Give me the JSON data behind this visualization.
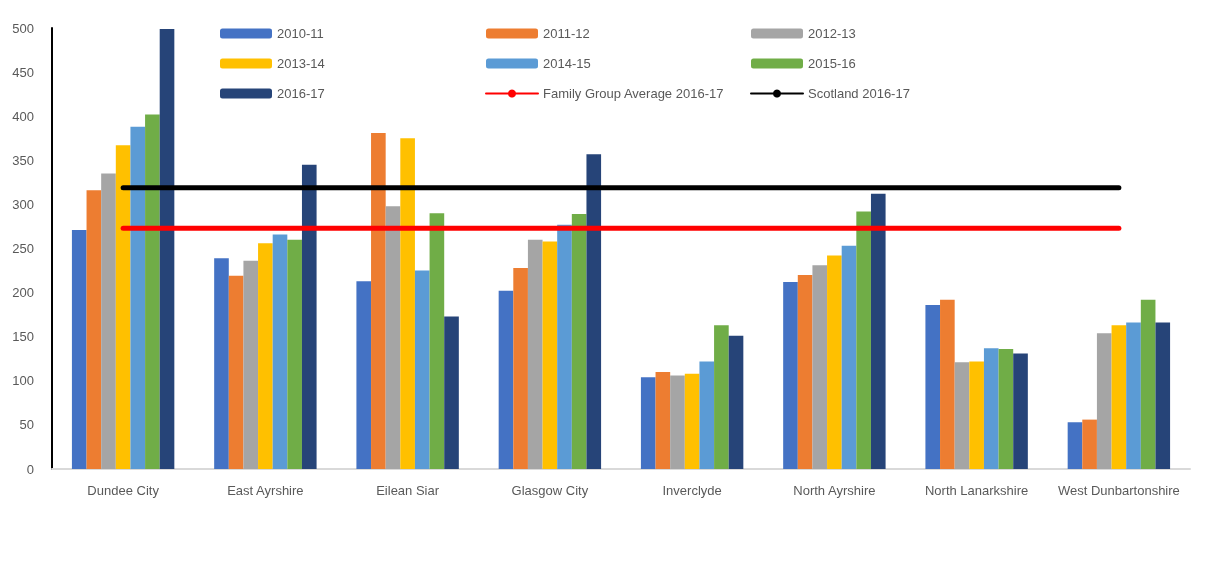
{
  "chart_data": {
    "type": "bar",
    "categories": [
      "Dundee City",
      "East Ayrshire",
      "Eilean Siar",
      "Glasgow City",
      "Inverclyde",
      "North Ayrshire",
      "North Lanarkshire",
      "West Dunbartonshire"
    ],
    "ylim": [
      0,
      500
    ],
    "yticks": [
      0,
      50,
      100,
      150,
      200,
      250,
      300,
      350,
      400,
      450,
      500
    ],
    "grid": false,
    "legend": "top",
    "series": [
      {
        "name": "2010-11",
        "color": "#4472c4",
        "values": [
          271,
          239,
          213,
          202,
          104,
          212,
          186,
          53
        ]
      },
      {
        "name": "2011-12",
        "color": "#ed7d31",
        "values": [
          316,
          219,
          381,
          228,
          110,
          220,
          192,
          56
        ]
      },
      {
        "name": "2012-13",
        "color": "#a5a5a5",
        "values": [
          335,
          236,
          298,
          260,
          106,
          231,
          121,
          154
        ]
      },
      {
        "name": "2013-14",
        "color": "#ffc000",
        "values": [
          367,
          256,
          375,
          258,
          108,
          242,
          122,
          163
        ]
      },
      {
        "name": "2014-15",
        "color": "#5b9bd5",
        "values": [
          388,
          266,
          225,
          277,
          122,
          253,
          137,
          166
        ]
      },
      {
        "name": "2015-16",
        "color": "#70ad47",
        "values": [
          402,
          260,
          290,
          289,
          163,
          292,
          136,
          192
        ]
      },
      {
        "name": "2016-17",
        "color": "#264478",
        "values": [
          499,
          345,
          173,
          357,
          151,
          312,
          131,
          166
        ]
      },
      {
        "name": "Family Group Average 2016-17",
        "type": "line",
        "marker": "none",
        "color": "#ff0000",
        "values": [
          273,
          273,
          273,
          273,
          273,
          273,
          273,
          273
        ]
      },
      {
        "name": "Scotland 2016-17",
        "type": "line",
        "marker": "none",
        "color": "#000000",
        "values": [
          319,
          319,
          319,
          319,
          319,
          319,
          319,
          319
        ]
      }
    ]
  }
}
